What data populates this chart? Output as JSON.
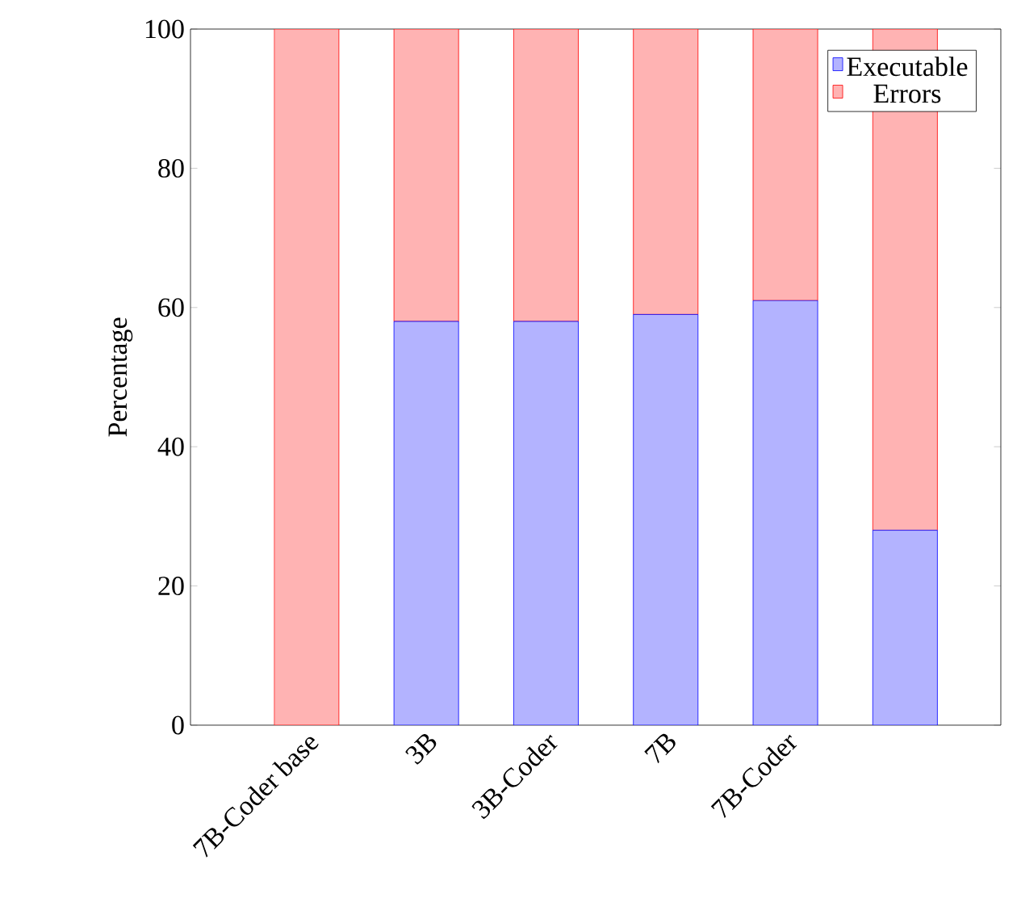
{
  "chart_data": {
    "type": "bar",
    "stacked": true,
    "ylabel": "Percentage",
    "categories": [
      "7B-Coder base",
      "3B",
      "3B-Coder",
      "7B",
      "7B-Coder",
      null
    ],
    "series": [
      {
        "name": "Executable",
        "color": "#b3b3ff",
        "values": [
          0,
          58,
          58,
          59,
          61,
          28
        ]
      },
      {
        "name": "Errors",
        "color": "#ffb3b3",
        "values": [
          100,
          42,
          42,
          41,
          39,
          72
        ]
      }
    ],
    "ylim": [
      0,
      100
    ],
    "yticks": [
      0,
      20,
      40,
      60,
      80,
      100
    ],
    "legend": "top right",
    "grid": false
  }
}
